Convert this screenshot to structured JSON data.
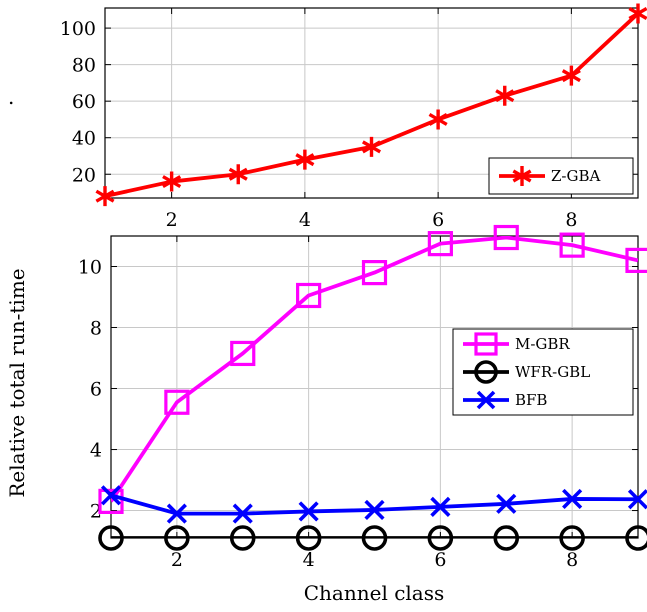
{
  "figure": {
    "ylabel": "Relative total run-time",
    "xlabel": "Channel class",
    "stray_mark": "."
  },
  "chart_data": [
    {
      "type": "line",
      "xlim": [
        1,
        9
      ],
      "ylim": [
        7,
        111
      ],
      "x_ticks": [
        2,
        4,
        6,
        8
      ],
      "y_ticks": [
        20,
        40,
        60,
        80,
        100
      ],
      "grid": true,
      "legend_position": "bottom-right",
      "series": [
        {
          "name": "Z-GBA",
          "color": "#ff0000",
          "marker": "asterisk",
          "x": [
            1,
            2,
            3,
            4,
            5,
            6,
            7,
            8,
            9
          ],
          "values": [
            8,
            16,
            20,
            28,
            35,
            50,
            63,
            74,
            108
          ]
        }
      ]
    },
    {
      "type": "line",
      "xlim": [
        1,
        9
      ],
      "ylim": [
        1.1,
        11.0
      ],
      "x_ticks": [
        2,
        4,
        6,
        8
      ],
      "y_ticks": [
        2,
        4,
        6,
        8,
        10
      ],
      "grid": true,
      "legend_position": "right",
      "series": [
        {
          "name": "M-GBR",
          "color": "#ff00ff",
          "marker": "square",
          "x": [
            1,
            2,
            3,
            4,
            5,
            6,
            7,
            8,
            9
          ],
          "values": [
            2.3,
            5.55,
            7.15,
            9.05,
            9.8,
            10.75,
            10.95,
            10.7,
            10.2
          ]
        },
        {
          "name": "WFR-GBL",
          "color": "#000000",
          "marker": "circle",
          "x": [
            1,
            2,
            3,
            4,
            5,
            6,
            7,
            8,
            9
          ],
          "values": [
            1.1,
            1.1,
            1.1,
            1.1,
            1.1,
            1.1,
            1.1,
            1.1,
            1.1
          ]
        },
        {
          "name": "BFB",
          "color": "#0000ff",
          "marker": "x",
          "x": [
            1,
            2,
            3,
            4,
            5,
            6,
            7,
            8,
            9
          ],
          "values": [
            2.5,
            1.9,
            1.9,
            1.97,
            2.02,
            2.12,
            2.22,
            2.38,
            2.37
          ]
        }
      ]
    }
  ]
}
